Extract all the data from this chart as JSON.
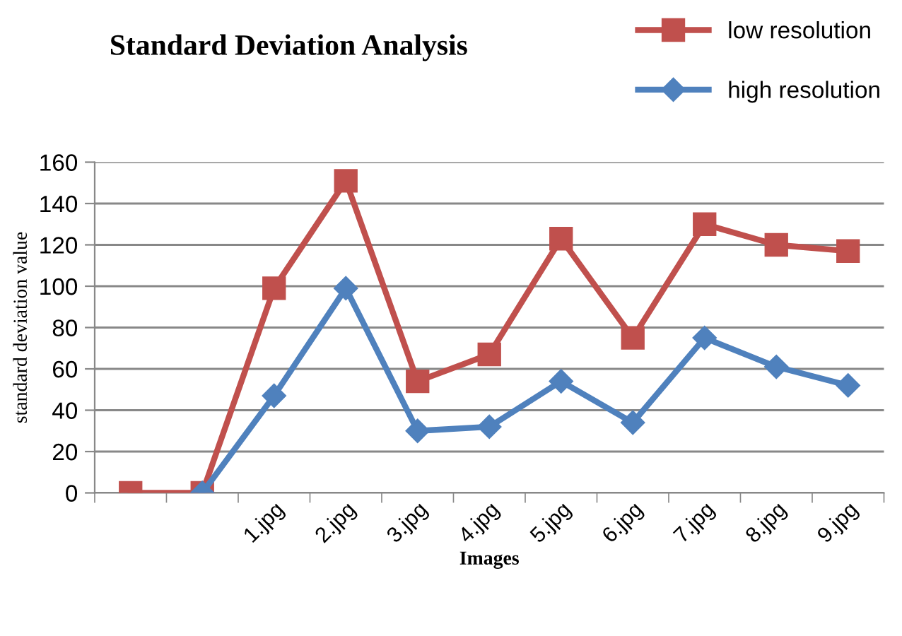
{
  "chart_data": {
    "type": "line",
    "title": "Standard Deviation Analysis",
    "xlabel": "Images",
    "ylabel": "standard deviation value",
    "categories": [
      null,
      null,
      "1.jpg",
      "2.jpg",
      "3.jpg",
      "4.jpg",
      "5.jpg",
      "6.jpg",
      "7.jpg",
      "8.jpg",
      "9.jpg"
    ],
    "series": [
      {
        "name": "low resolution",
        "color": "#c0504d",
        "marker": "square",
        "values": [
          0,
          0,
          99,
          151,
          54,
          67,
          123,
          75,
          130,
          120,
          117
        ]
      },
      {
        "name": "high resolution",
        "color": "#4f81bd",
        "marker": "diamond",
        "values": [
          null,
          0,
          47,
          99,
          30,
          32,
          54,
          34,
          75,
          61,
          52
        ]
      }
    ],
    "ylim": [
      0,
      160
    ],
    "yticks": [
      0,
      20,
      40,
      60,
      80,
      100,
      120,
      140,
      160
    ],
    "grid": "y",
    "legend": "top right",
    "line_style": "solid"
  }
}
